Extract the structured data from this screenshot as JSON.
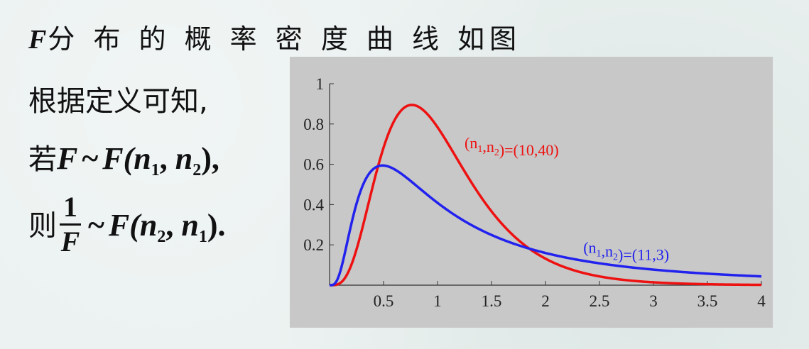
{
  "slide": {
    "title_var": "F",
    "title_text": "分 布 的 概 率 密 度 曲 线 如图",
    "line1": "根据定义可知,",
    "line2": {
      "prefix": "若",
      "F1": "F",
      "tilde": "~",
      "F2": "F(",
      "n1": "n",
      "n1_sub": "1",
      "comma": ", ",
      "n2": "n",
      "n2_sub": "2",
      "close": "),"
    },
    "line3": {
      "prefix": "则",
      "frac_num": "1",
      "frac_den": "F",
      "tilde": "~",
      "F2": "F(",
      "n2": "n",
      "n2_sub": "2",
      "comma": ", ",
      "n1": "n",
      "n1_sub": "1",
      "close": ")."
    }
  },
  "chart_data": {
    "type": "line",
    "xlim": [
      0,
      4
    ],
    "ylim": [
      0,
      1
    ],
    "x_ticks": [
      0.5,
      1,
      1.5,
      2,
      2.5,
      3,
      3.5,
      4
    ],
    "x_tick_labels": [
      "0.5",
      "1",
      "1.5",
      "2",
      "2.5",
      "3",
      "3.5",
      "4"
    ],
    "y_ticks": [
      0.2,
      0.4,
      0.6,
      0.8,
      1
    ],
    "y_tick_labels": [
      "0.2",
      "0.4",
      "0.6",
      "0.8",
      "1"
    ],
    "grid": false,
    "series": [
      {
        "name": "(n1,n2)=(10,40)",
        "label_main": "(n",
        "label_sub1": "1",
        "label_mid": ",n",
        "label_sub2": "2",
        "label_tail": ")=(10,40)",
        "label_anchor": {
          "x": 1.25,
          "y": 0.68
        },
        "color": "#ee1111",
        "dof": [
          10,
          40
        ],
        "x": [
          0.1,
          0.2,
          0.3,
          0.4,
          0.5,
          0.6,
          0.7,
          0.8,
          0.9,
          1.0,
          1.2,
          1.4,
          1.6,
          1.8,
          2.0,
          2.5,
          3.0,
          3.5,
          4.0
        ],
        "values": [
          0.01,
          0.11,
          0.31,
          0.56,
          0.75,
          0.86,
          0.9,
          0.88,
          0.82,
          0.73,
          0.54,
          0.37,
          0.25,
          0.16,
          0.1,
          0.03,
          0.01,
          0.003,
          0.001
        ]
      },
      {
        "name": "(n1,n2)=(11,3)",
        "label_main": "(n",
        "label_sub1": "1",
        "label_mid": ",n",
        "label_sub2": "2",
        "label_tail": ")=(11,3)",
        "label_anchor": {
          "x": 2.35,
          "y": 0.16
        },
        "color": "#2222ee",
        "dof": [
          11,
          3
        ],
        "x": [
          0.1,
          0.2,
          0.3,
          0.4,
          0.5,
          0.6,
          0.8,
          1.0,
          1.2,
          1.5,
          2.0,
          2.5,
          3.0,
          3.5,
          4.0
        ],
        "values": [
          0.2,
          0.39,
          0.53,
          0.59,
          0.6,
          0.58,
          0.5,
          0.42,
          0.35,
          0.27,
          0.18,
          0.13,
          0.1,
          0.07,
          0.055
        ]
      }
    ]
  }
}
